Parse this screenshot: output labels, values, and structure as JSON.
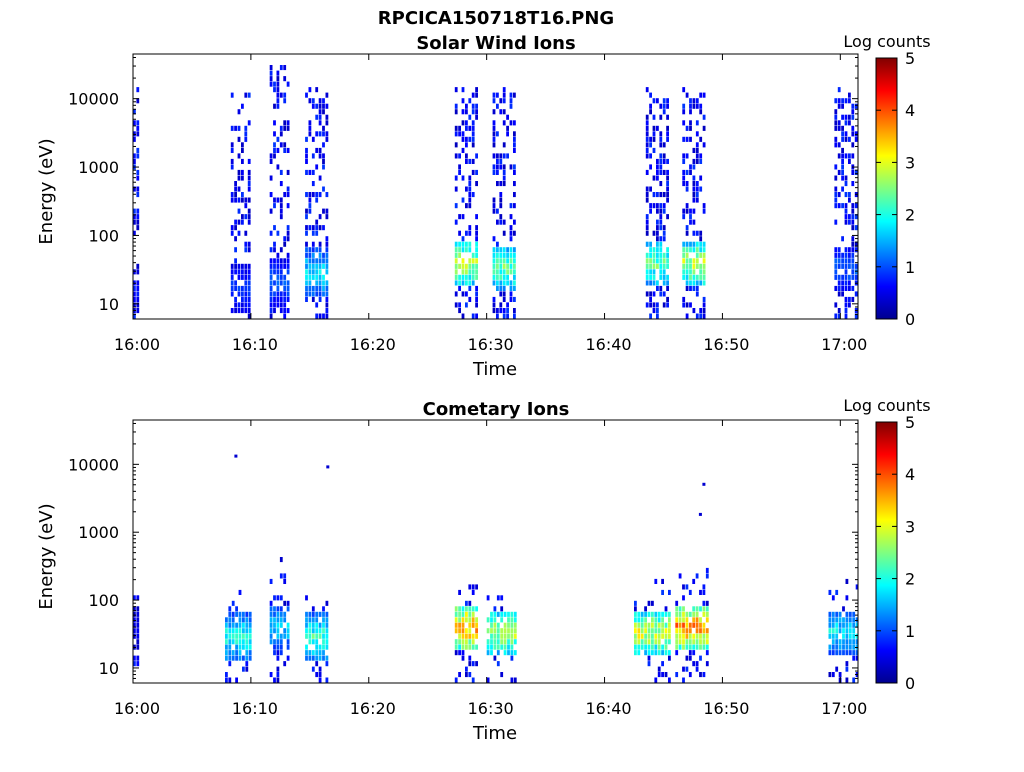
{
  "title": "RPCICA150718T16.PNG",
  "colormap": "jet",
  "chart_data": [
    {
      "type": "heatmap",
      "title": "Solar Wind Ions",
      "xlabel": "Time",
      "ylabel": "Energy (eV)",
      "x_tick_labels": [
        "16:00",
        "16:10",
        "16:20",
        "16:30",
        "16:40",
        "16:50",
        "17:00"
      ],
      "x_tick_minutes": [
        0,
        10,
        20,
        30,
        40,
        50,
        60
      ],
      "xlim_minutes": [
        0,
        61.5
      ],
      "y_scale": "log",
      "ylim": [
        6,
        45000
      ],
      "y_tick_labels": [
        "10",
        "100",
        "1000",
        "10000"
      ],
      "y_tick_values": [
        10,
        100,
        1000,
        10000
      ],
      "colorbar": {
        "label": "Log counts",
        "range": [
          0,
          5
        ],
        "tick_labels": [
          "0",
          "1",
          "2",
          "3",
          "4",
          "5"
        ]
      },
      "bursts": [
        {
          "t_start": 0.0,
          "t_end": 0.4,
          "e_max": 14000,
          "peak_energy": 15,
          "peak_log_counts": 0.8
        },
        {
          "t_start": 8.3,
          "t_end": 10.0,
          "e_max": 11000,
          "peak_energy": 15,
          "peak_log_counts": 1.0
        },
        {
          "t_start": 11.6,
          "t_end": 13.3,
          "e_max": 30000,
          "peak_energy": 18,
          "peak_log_counts": 1.2
        },
        {
          "t_start": 14.6,
          "t_end": 16.4,
          "e_max": 14000,
          "peak_energy": 25,
          "peak_log_counts": 2.0
        },
        {
          "t_start": 27.3,
          "t_end": 29.2,
          "e_max": 14000,
          "peak_energy": 35,
          "peak_log_counts": 3.1
        },
        {
          "t_start": 30.5,
          "t_end": 32.5,
          "e_max": 14000,
          "peak_energy": 30,
          "peak_log_counts": 2.6
        },
        {
          "t_start": 43.5,
          "t_end": 45.5,
          "e_max": 14000,
          "peak_energy": 35,
          "peak_log_counts": 2.6
        },
        {
          "t_start": 46.6,
          "t_end": 48.6,
          "e_max": 14000,
          "peak_energy": 35,
          "peak_log_counts": 3.1
        },
        {
          "t_start": 59.5,
          "t_end": 61.5,
          "e_max": 14000,
          "peak_energy": 30,
          "peak_log_counts": 1.2
        }
      ]
    },
    {
      "type": "heatmap",
      "title": "Cometary Ions",
      "xlabel": "Time",
      "ylabel": "Energy (eV)",
      "x_tick_labels": [
        "16:00",
        "16:10",
        "16:20",
        "16:30",
        "16:40",
        "16:50",
        "17:00"
      ],
      "x_tick_minutes": [
        0,
        10,
        20,
        30,
        40,
        50,
        60
      ],
      "xlim_minutes": [
        0,
        61.5
      ],
      "y_scale": "log",
      "ylim": [
        6,
        45000
      ],
      "y_tick_labels": [
        "10",
        "100",
        "1000",
        "10000"
      ],
      "y_tick_values": [
        10,
        100,
        1000,
        10000
      ],
      "colorbar": {
        "label": "Log counts",
        "range": [
          0,
          5
        ],
        "tick_labels": [
          "0",
          "1",
          "2",
          "3",
          "4",
          "5"
        ]
      },
      "bursts": [
        {
          "t_start": 0.0,
          "t_end": 0.4,
          "e_max": 200,
          "peak_energy": 35,
          "peak_log_counts": 0.6
        },
        {
          "t_start": 7.8,
          "t_end": 10.0,
          "e_max": 120,
          "peak_energy": 25,
          "peak_log_counts": 2.2
        },
        {
          "t_start": 11.6,
          "t_end": 13.3,
          "e_max": 400,
          "peak_energy": 35,
          "peak_log_counts": 1.8
        },
        {
          "t_start": 14.6,
          "t_end": 16.4,
          "e_max": 120,
          "peak_energy": 25,
          "peak_log_counts": 2.4
        },
        {
          "t_start": 27.3,
          "t_end": 29.2,
          "e_max": 200,
          "peak_energy": 35,
          "peak_log_counts": 4.0
        },
        {
          "t_start": 30.0,
          "t_end": 32.5,
          "e_max": 150,
          "peak_energy": 30,
          "peak_log_counts": 3.0
        },
        {
          "t_start": 42.5,
          "t_end": 45.5,
          "e_max": 200,
          "peak_energy": 30,
          "peak_log_counts": 3.2
        },
        {
          "t_start": 46.0,
          "t_end": 48.6,
          "e_max": 250,
          "peak_energy": 35,
          "peak_log_counts": 4.1
        },
        {
          "t_start": 59.0,
          "t_end": 61.5,
          "e_max": 200,
          "peak_energy": 30,
          "peak_log_counts": 2.0
        }
      ],
      "isolated_points": [
        {
          "t": 8.6,
          "energy": 13000
        },
        {
          "t": 16.4,
          "energy": 9000
        },
        {
          "t": 48.0,
          "energy": 1800
        },
        {
          "t": 48.3,
          "energy": 5000
        }
      ]
    }
  ]
}
